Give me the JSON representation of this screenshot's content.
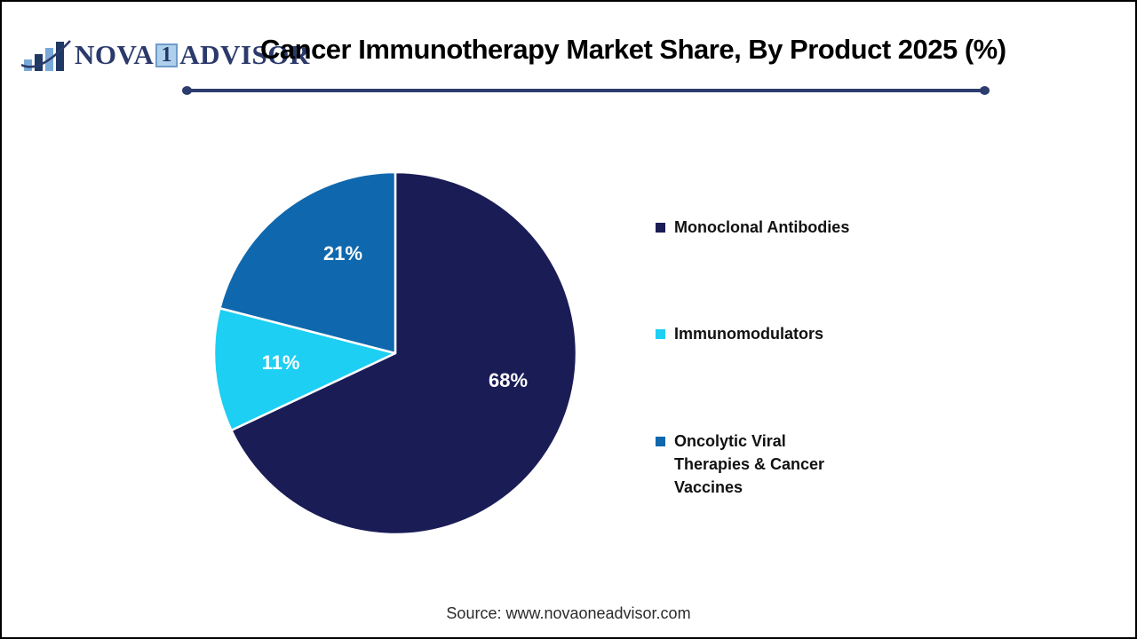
{
  "page": {
    "background": "#ffffff",
    "frame_border_color": "#000000"
  },
  "header": {
    "logo": {
      "word_nova": "NOVA",
      "word_one": "1",
      "word_advisor": "ADVISOR",
      "text_color": "#2b3a6b",
      "one_box_bg": "#aed0ec",
      "icon": "bar-chart-swoosh-icon",
      "icon_light_color": "#7aa9d8",
      "icon_dark_color": "#1f3864"
    },
    "title": "Cancer Immunotherapy Market Share, By Product 2025 (%)",
    "divider_color": "#2d3c6e"
  },
  "chart_data": {
    "type": "pie",
    "title": "Cancer Immunotherapy Market Share, By Product 2025 (%)",
    "unit": "%",
    "start_angle_deg": 0,
    "direction": "clockwise",
    "legend_position": "right",
    "slice_border_color": "#ffffff",
    "label_color": "#ffffff",
    "slices": [
      {
        "label": "Monoclonal Antibodies",
        "value": 68,
        "display": "68%",
        "color": "#1a1c56",
        "label_pos": [
          334,
          237
        ]
      },
      {
        "label": "Immunomodulators",
        "value": 11,
        "display": "11%",
        "color": "#1dcff2",
        "label_pos": [
          78,
          217
        ]
      },
      {
        "label": "Oncolytic Viral Therapies & Cancer Vaccines",
        "value": 21,
        "display": "21%",
        "color": "#0f68ae",
        "label_pos": [
          148,
          94
        ]
      }
    ]
  },
  "footer": {
    "source": "Source: www.novaoneadvisor.com"
  }
}
